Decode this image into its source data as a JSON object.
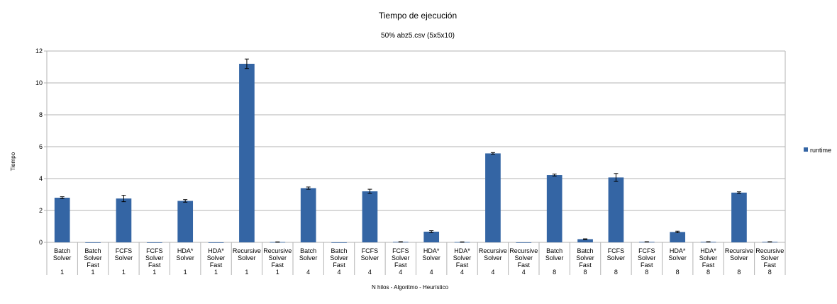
{
  "chart_data": {
    "type": "bar",
    "title": "Tiempo de ejecución",
    "subtitle": "50% abz5.csv (5x5x10)",
    "xlabel": "N hilos - Algoritmo - Heurístico",
    "ylabel": "Tiempo",
    "ylim": [
      0,
      12
    ],
    "yticks": [
      0,
      2,
      4,
      6,
      8,
      10,
      12
    ],
    "grid": true,
    "legend_position": "right",
    "bar_color": "#3465a4",
    "categories": [
      {
        "algo": [
          "Batch",
          "Solver"
        ],
        "threads": "1"
      },
      {
        "algo": [
          "Batch",
          "Solver",
          "Fast"
        ],
        "threads": "1"
      },
      {
        "algo": [
          "FCFS",
          "Solver"
        ],
        "threads": "1"
      },
      {
        "algo": [
          "FCFS",
          "Solver",
          "Fast"
        ],
        "threads": "1"
      },
      {
        "algo": [
          "HDA*",
          "Solver"
        ],
        "threads": "1"
      },
      {
        "algo": [
          "HDA*",
          "Solver",
          "Fast"
        ],
        "threads": "1"
      },
      {
        "algo": [
          "Recursive",
          "Solver"
        ],
        "threads": "1"
      },
      {
        "algo": [
          "Recursive",
          "Solver",
          "Fast"
        ],
        "threads": "1"
      },
      {
        "algo": [
          "Batch",
          "Solver"
        ],
        "threads": "4"
      },
      {
        "algo": [
          "Batch",
          "Solver",
          "Fast"
        ],
        "threads": "4"
      },
      {
        "algo": [
          "FCFS",
          "Solver"
        ],
        "threads": "4"
      },
      {
        "algo": [
          "FCFS",
          "Solver",
          "Fast"
        ],
        "threads": "4"
      },
      {
        "algo": [
          "HDA*",
          "Solver"
        ],
        "threads": "4"
      },
      {
        "algo": [
          "HDA*",
          "Solver",
          "Fast"
        ],
        "threads": "4"
      },
      {
        "algo": [
          "Recursive",
          "Solver"
        ],
        "threads": "4"
      },
      {
        "algo": [
          "Recursive",
          "Solver",
          "Fast"
        ],
        "threads": "4"
      },
      {
        "algo": [
          "Batch",
          "Solver"
        ],
        "threads": "8"
      },
      {
        "algo": [
          "Batch",
          "Solver",
          "Fast"
        ],
        "threads": "8"
      },
      {
        "algo": [
          "FCFS",
          "Solver"
        ],
        "threads": "8"
      },
      {
        "algo": [
          "FCFS",
          "Solver",
          "Fast"
        ],
        "threads": "8"
      },
      {
        "algo": [
          "HDA*",
          "Solver"
        ],
        "threads": "8"
      },
      {
        "algo": [
          "HDA*",
          "Solver",
          "Fast"
        ],
        "threads": "8"
      },
      {
        "algo": [
          "Recursive",
          "Solver"
        ],
        "threads": "8"
      },
      {
        "algo": [
          "Recursive",
          "Solver",
          "Fast"
        ],
        "threads": "8"
      }
    ],
    "series": [
      {
        "name": "runtime",
        "values": [
          2.8,
          0.0,
          2.75,
          0.0,
          2.6,
          0.0,
          11.2,
          0.02,
          3.4,
          0.0,
          3.2,
          0.03,
          0.67,
          0.02,
          5.58,
          0.0,
          4.22,
          0.2,
          4.07,
          0.03,
          0.65,
          0.03,
          3.12,
          0.03
        ],
        "errors": [
          0.06,
          0.0,
          0.2,
          0.0,
          0.08,
          0.0,
          0.3,
          0.01,
          0.07,
          0.0,
          0.13,
          0.01,
          0.06,
          0.01,
          0.05,
          0.0,
          0.06,
          0.02,
          0.25,
          0.01,
          0.05,
          0.01,
          0.05,
          0.01
        ]
      }
    ]
  }
}
